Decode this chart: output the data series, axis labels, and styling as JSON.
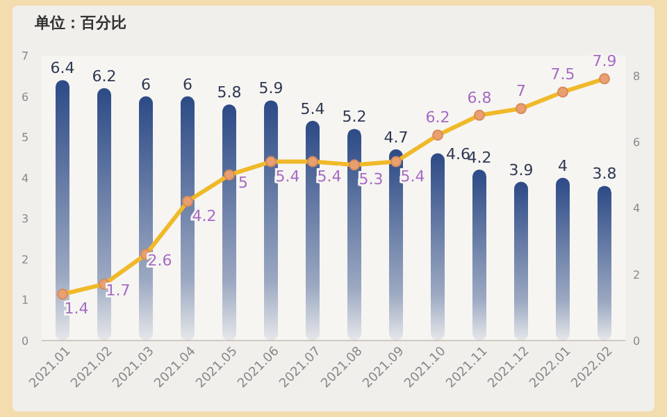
{
  "chart_data": {
    "type": "bar",
    "ylabel": "单位：百分比",
    "categories": [
      "2021.01",
      "2021.02",
      "2021.03",
      "2021.04",
      "2021.05",
      "2021.06",
      "2021.07",
      "2021.08",
      "2021.09",
      "2021.10",
      "2021.11",
      "2021.12",
      "2022.01",
      "2022.02"
    ],
    "series": [
      {
        "color": "#2c4a86",
        "values": [
          6.4,
          6.2,
          6,
          6,
          5.8,
          5.9,
          5.4,
          5.2,
          4.7,
          4.6,
          4.2,
          3.9,
          4,
          3.8
        ]
      },
      {
        "type": "line",
        "axis": "y2",
        "color": "#f0b92a",
        "marker": "circle",
        "values": [
          1.4,
          1.7,
          2.6,
          4.2,
          5,
          5.4,
          5.4,
          5.3,
          5.4,
          6.2,
          6.8,
          7,
          7.5,
          7.9
        ]
      }
    ],
    "ylim": [
      0,
      7
    ],
    "yticks": [
      0,
      1,
      2,
      3,
      4,
      5,
      6,
      7
    ],
    "y2lim": [
      0,
      8.6
    ],
    "y2ticks": [
      0,
      2,
      4,
      6,
      8
    ],
    "data_labels": true,
    "grid": false
  }
}
